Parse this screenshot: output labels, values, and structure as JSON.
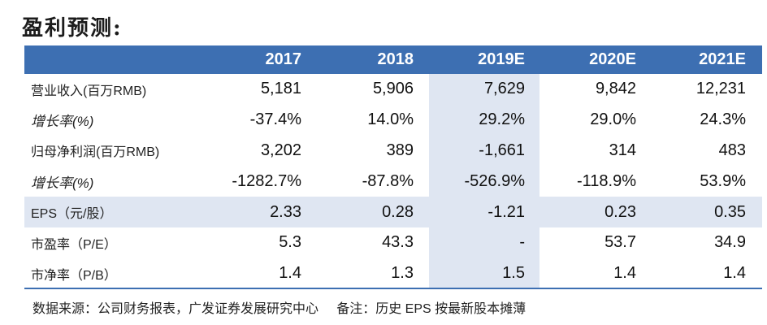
{
  "title": "盈利预测:",
  "table": {
    "headers": [
      "",
      "2017",
      "2018",
      "2019E",
      "2020E",
      "2021E"
    ],
    "rows": [
      {
        "label": "营业收入(百万RMB)",
        "italic": false,
        "shaded": false,
        "values": [
          "5,181",
          "5,906",
          "7,629",
          "9,842",
          "12,231"
        ]
      },
      {
        "label": "增长率(%)",
        "italic": true,
        "shaded": false,
        "values": [
          "-37.4%",
          "14.0%",
          "29.2%",
          "29.0%",
          "24.3%"
        ]
      },
      {
        "label": "归母净利润(百万RMB)",
        "italic": false,
        "shaded": false,
        "values": [
          "3,202",
          "389",
          "-1,661",
          "314",
          "483"
        ]
      },
      {
        "label": "增长率(%)",
        "italic": true,
        "shaded": false,
        "values": [
          "-1282.7%",
          "-87.8%",
          "-526.9%",
          "-118.9%",
          "53.9%"
        ]
      },
      {
        "label": "EPS（元/股）",
        "italic": false,
        "shaded": true,
        "values": [
          "2.33",
          "0.28",
          "-1.21",
          "0.23",
          "0.35"
        ]
      },
      {
        "label": "市盈率（P/E）",
        "italic": false,
        "shaded": false,
        "values": [
          "5.3",
          "43.3",
          "-",
          "53.7",
          "34.9"
        ]
      },
      {
        "label": "市净率（P/B）",
        "italic": false,
        "shaded": false,
        "values": [
          "1.4",
          "1.3",
          "1.5",
          "1.4",
          "1.4"
        ]
      }
    ]
  },
  "footnote": "数据来源：公司财务报表，广发证券发展研究中心     备注：历史 EPS 按最新股本摊薄",
  "colors": {
    "header_bg": "#3d6fb2",
    "highlight_bg": "#dfe6f2"
  }
}
